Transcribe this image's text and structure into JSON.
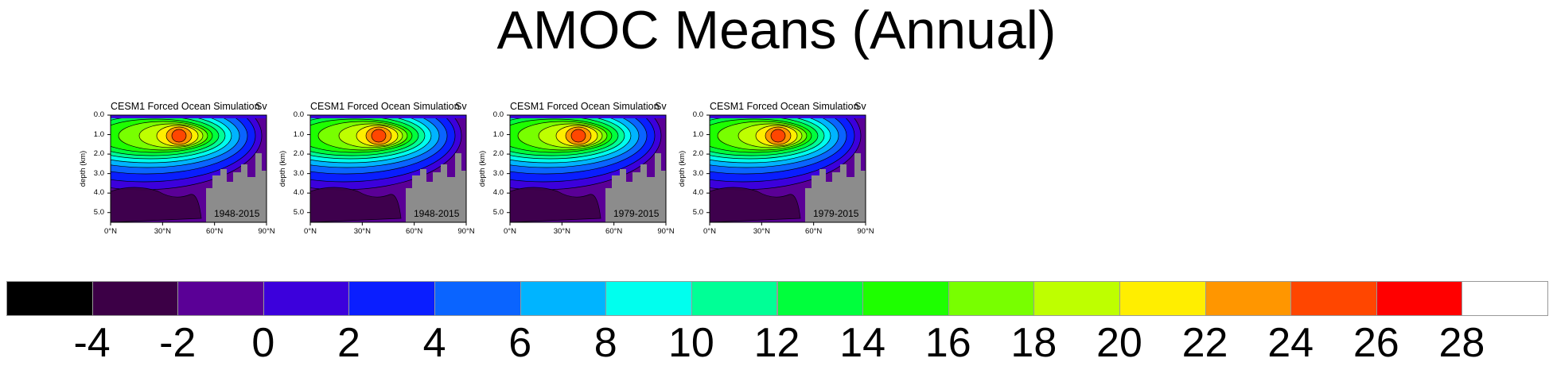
{
  "title": "AMOC Means (Annual)",
  "panels": [
    {
      "title": "CESM1 Forced Ocean Simulation",
      "units": "Sv",
      "period": "1948-2015"
    },
    {
      "title": "CESM1 Forced Ocean Simulation",
      "units": "Sv",
      "period": "1948-2015"
    },
    {
      "title": "CESM1 Forced Ocean Simulation",
      "units": "Sv",
      "period": "1979-2015"
    },
    {
      "title": "CESM1 Forced Ocean Simulation",
      "units": "Sv",
      "period": "1979-2015"
    }
  ],
  "chart_data": {
    "type": "heatmap",
    "title": "AMOC Means (Annual)",
    "xlabel": "",
    "ylabel": "depth (km)",
    "x_ticks": [
      "0°N",
      "30°N",
      "60°N",
      "90°N"
    ],
    "y_ticks": [
      "0.0",
      "1.0",
      "2.0",
      "3.0",
      "4.0",
      "5.0"
    ],
    "xlim": [
      0,
      90
    ],
    "ylim": [
      5.5,
      0
    ],
    "colorbar": {
      "levels": [
        "-4",
        "-2",
        "0",
        "2",
        "4",
        "6",
        "8",
        "10",
        "12",
        "14",
        "16",
        "18",
        "20",
        "22",
        "24",
        "26",
        "28"
      ],
      "colors": [
        "#000000",
        "#3c0046",
        "#5a0096",
        "#3c00dc",
        "#0a1eff",
        "#0a64ff",
        "#00b4ff",
        "#00ffee",
        "#00ff96",
        "#00ff3c",
        "#1eff00",
        "#78ff00",
        "#beff00",
        "#ffee00",
        "#ff9600",
        "#ff4600",
        "#ff0000",
        "#ffffff"
      ]
    }
  }
}
